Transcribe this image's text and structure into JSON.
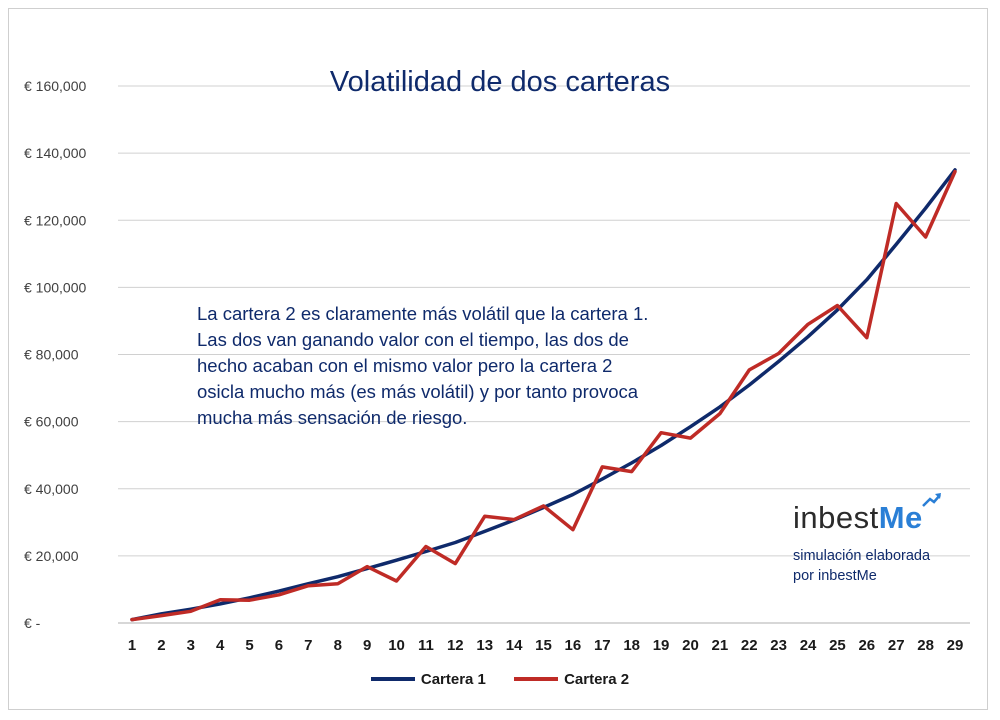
{
  "chart_data": {
    "type": "line",
    "title": "Volatilidad de dos carteras",
    "x": [
      1,
      2,
      3,
      4,
      5,
      6,
      7,
      8,
      9,
      10,
      11,
      12,
      13,
      14,
      15,
      16,
      17,
      18,
      19,
      20,
      21,
      22,
      23,
      24,
      25,
      26,
      27,
      28,
      29
    ],
    "ylim": [
      0,
      160000
    ],
    "yticks": [
      {
        "value": 0,
        "label": "€ -"
      },
      {
        "value": 20000,
        "label": "€ 20,000"
      },
      {
        "value": 40000,
        "label": "€ 40,000"
      },
      {
        "value": 60000,
        "label": "€ 60,000"
      },
      {
        "value": 80000,
        "label": "€ 80,000"
      },
      {
        "value": 100000,
        "label": "€ 100,000"
      },
      {
        "value": 120000,
        "label": "€ 120,000"
      },
      {
        "value": 140000,
        "label": "€ 140,000"
      },
      {
        "value": 160000,
        "label": "€ 160,000"
      }
    ],
    "grid": "horizontal",
    "legend": "bottom",
    "series": [
      {
        "name": "Cartera 1",
        "color": "#0f2a6b",
        "values": [
          1000,
          2700,
          4100,
          5700,
          7500,
          9500,
          11700,
          13800,
          16200,
          18700,
          21300,
          24000,
          27300,
          30700,
          34400,
          38300,
          42900,
          47700,
          52900,
          58500,
          64400,
          70900,
          77900,
          85300,
          93300,
          102300,
          112800,
          123600,
          135000
        ]
      },
      {
        "name": "Cartera 2",
        "color": "#bf2b26",
        "values": [
          1000,
          2200,
          3500,
          6900,
          6800,
          8400,
          11100,
          11700,
          16800,
          12500,
          22800,
          17700,
          31800,
          30800,
          34900,
          27800,
          46500,
          45100,
          56700,
          55100,
          62400,
          75400,
          80300,
          89000,
          94600,
          85000,
          125000,
          115000,
          134500
        ]
      }
    ]
  },
  "annotation": {
    "lines": [
      "La cartera 2 es claramente más volátil que la cartera 1.",
      "Las dos van ganando valor con el tiempo, las dos de",
      "hecho acaban con el mismo valor pero la cartera 2",
      "osicla mucho más (es más volátil) y por tanto provoca",
      "mucha más sensación de riesgo."
    ]
  },
  "brand": {
    "logo_text_main": "inbest",
    "logo_text_accent": "Me",
    "accent_color": "#2a7fd6",
    "note_lines": [
      "simulación elaborada",
      "por inbestMe"
    ]
  }
}
